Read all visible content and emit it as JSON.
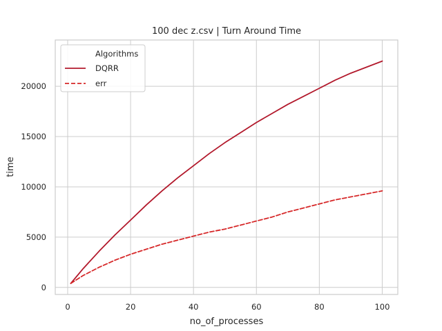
{
  "chart_data": {
    "type": "line",
    "title": "100 dec z.csv | Turn Around Time",
    "xlabel": "no_of_processes",
    "ylabel": "time",
    "xlim": [
      -3.95,
      104.95
    ],
    "ylim": [
      -700,
      24600
    ],
    "xticks": [
      0,
      20,
      40,
      60,
      80,
      100
    ],
    "yticks": [
      0,
      5000,
      10000,
      15000,
      20000
    ],
    "xtick_labels": [
      "0",
      "20",
      "40",
      "60",
      "80",
      "100"
    ],
    "ytick_labels": [
      "0",
      "5000",
      "10000",
      "15000",
      "20000"
    ],
    "grid": true,
    "legend": {
      "title": "Algorithms",
      "placement": "top-left"
    },
    "series": [
      {
        "name": "DQRR",
        "style": "solid",
        "color": "#b2182b",
        "x": [
          1,
          5,
          10,
          15,
          20,
          25,
          30,
          35,
          40,
          45,
          50,
          55,
          60,
          65,
          70,
          75,
          80,
          85,
          90,
          95,
          100
        ],
        "y": [
          400,
          1900,
          3600,
          5200,
          6700,
          8200,
          9600,
          10900,
          12100,
          13300,
          14400,
          15400,
          16400,
          17300,
          18200,
          19000,
          19800,
          20600,
          21300,
          21900,
          22500
        ]
      },
      {
        "name": "err",
        "style": "dashed",
        "color": "#d62728",
        "x": [
          1,
          5,
          10,
          15,
          20,
          25,
          30,
          35,
          40,
          45,
          50,
          55,
          60,
          65,
          70,
          75,
          80,
          85,
          90,
          95,
          100
        ],
        "y": [
          400,
          1200,
          2000,
          2700,
          3300,
          3800,
          4300,
          4700,
          5100,
          5500,
          5800,
          6200,
          6600,
          7000,
          7500,
          7900,
          8300,
          8700,
          9000,
          9300,
          9600
        ]
      }
    ]
  }
}
